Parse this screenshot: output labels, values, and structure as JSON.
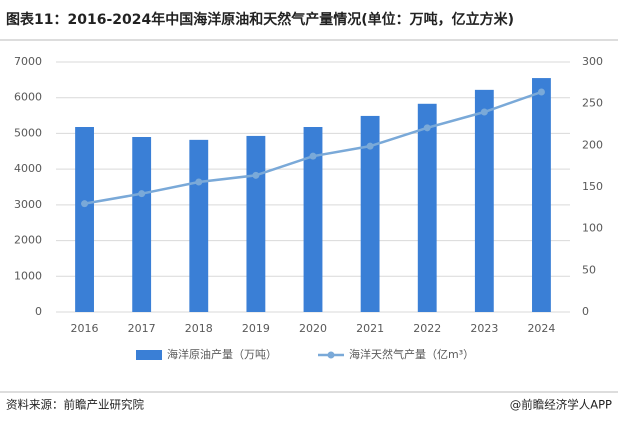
{
  "chart_data": {
    "type": "bar",
    "title": "图表11：2016-2024年中国海洋原油和天然气产量情况(单位：万吨，亿立方米)",
    "categories": [
      "2016",
      "2017",
      "2018",
      "2019",
      "2020",
      "2021",
      "2022",
      "2023",
      "2024"
    ],
    "series": [
      {
        "name": "海洋原油产量（万吨）",
        "type": "bar",
        "color": "#3a7fd6",
        "values": [
          5180,
          4900,
          4820,
          4930,
          5180,
          5490,
          5830,
          6220,
          6550
        ]
      },
      {
        "name": "海洋天然气产量（亿m³）",
        "type": "line",
        "axis": "y2",
        "color": "#7aa9d8",
        "values": [
          130,
          142,
          156,
          164,
          187,
          199,
          221,
          240,
          264
        ]
      }
    ],
    "ylim": [
      0,
      7000
    ],
    "yticks": [
      0,
      1000,
      2000,
      3000,
      4000,
      5000,
      6000,
      7000
    ],
    "y2lim": [
      0,
      300
    ],
    "y2ticks": [
      0,
      50,
      100,
      150,
      200,
      250,
      300
    ],
    "grid": true,
    "source": "资料来源：前瞻产业研究院",
    "credit": "@前瞻经济学人APP"
  }
}
